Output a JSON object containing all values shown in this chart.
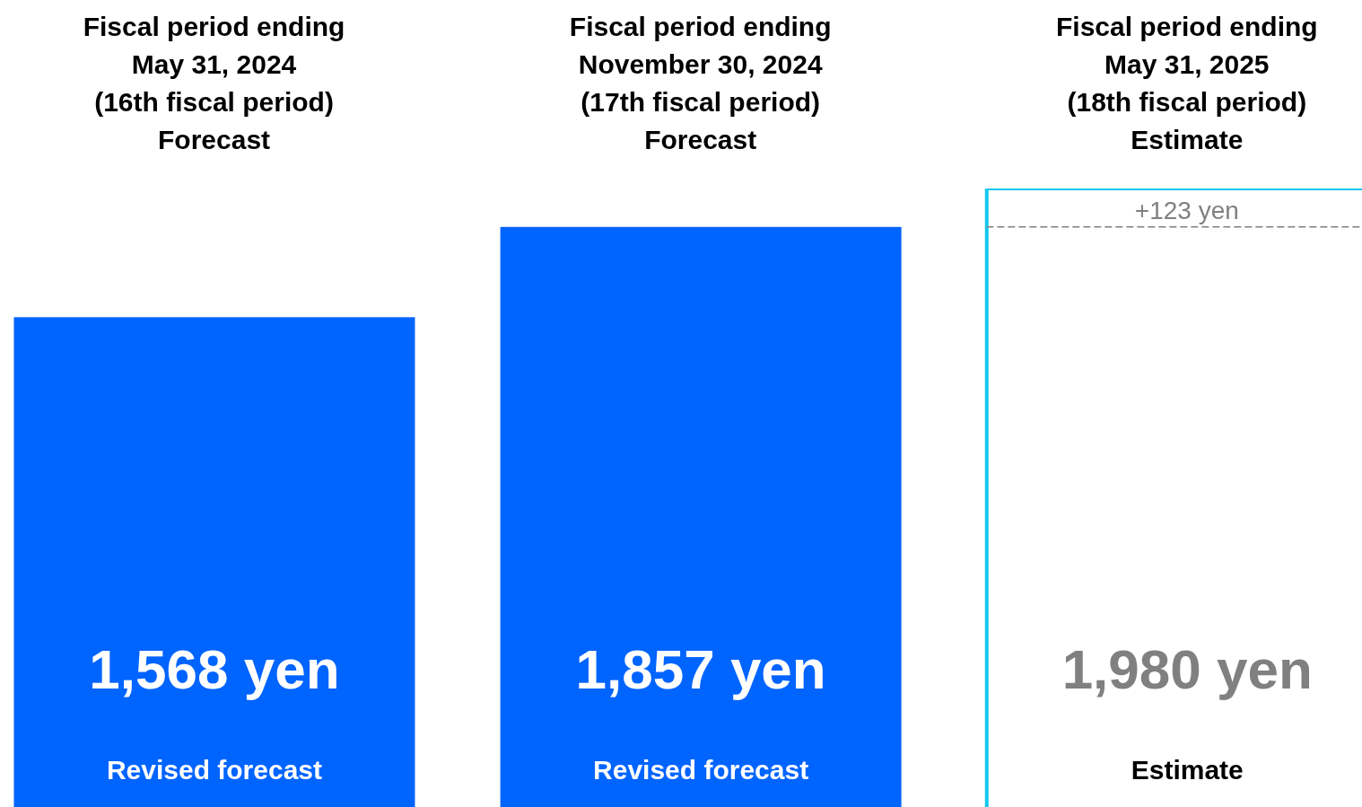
{
  "chart_data": {
    "type": "bar",
    "categories": [
      "Fiscal period ending\nMay 31, 2024\n(16th fiscal period)\nForecast",
      "Fiscal period ending\nNovember 30, 2024\n(17th fiscal period)\nForecast",
      "Fiscal period ending\nMay 31, 2025\n(18th fiscal period)\nEstimate"
    ],
    "values": [
      1568,
      1857,
      1980
    ],
    "colors": [
      "#0064ff",
      "#0064ff",
      "#ffffff"
    ],
    "value_labels": [
      "1,568 yen",
      "1,857 yen",
      "1,980 yen"
    ],
    "tick_labels": "x",
    "ref_lines": [
      {
        "axis": "y",
        "value": 1857,
        "label": "+123 yen",
        "color": "#808080",
        "line_style": "dashed"
      }
    ],
    "annotations": [
      "Revised forecast",
      "Revised forecast",
      "Estimate"
    ]
  }
}
